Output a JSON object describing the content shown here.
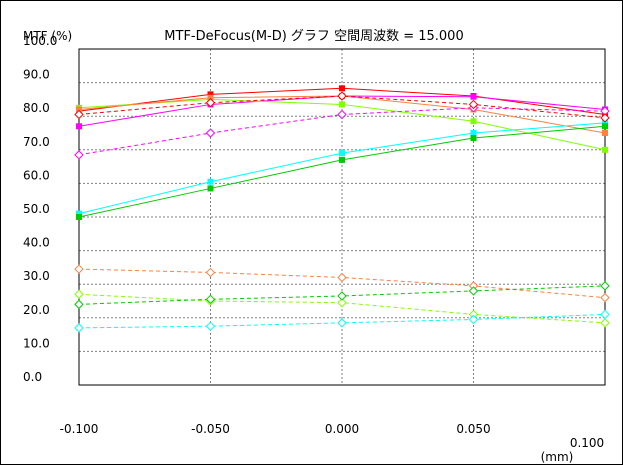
{
  "chart_data": {
    "type": "line",
    "title": "MTF-DeFocus(M-D) グラフ  空間周波数 = 15.000",
    "ylabel": "MTF (%)",
    "xlabel": "(mm)",
    "x": [
      -0.1,
      -0.05,
      0.0,
      0.05,
      0.1
    ],
    "x_tick_labels": [
      "-0.100",
      "-0.050",
      "0.000",
      "0.050",
      "0.100"
    ],
    "y_tick_labels": [
      "0.0",
      "10.0",
      "20.0",
      "30.0",
      "40.0",
      "50.0",
      "60.0",
      "70.0",
      "80.0",
      "90.0",
      "100.0"
    ],
    "xlim": [
      -0.1,
      0.1
    ],
    "ylim": [
      0,
      100
    ],
    "grid": true,
    "series": [
      {
        "color": "#ff0000",
        "dash": false,
        "marker": "square",
        "values": [
          81.5,
          86.5,
          88.3,
          86.0,
          80.5
        ]
      },
      {
        "color": "#ff00ff",
        "dash": false,
        "marker": "square",
        "values": [
          77.0,
          83.5,
          86.0,
          85.8,
          82.0
        ]
      },
      {
        "color": "#80ff00",
        "dash": false,
        "marker": "square",
        "values": [
          82.5,
          85.0,
          83.5,
          78.5,
          70.0
        ]
      },
      {
        "color": "#ff8040",
        "dash": false,
        "marker": "square",
        "values": [
          82.0,
          85.5,
          86.0,
          82.0,
          75.0
        ]
      },
      {
        "color": "#00ffff",
        "dash": false,
        "marker": "square",
        "values": [
          51.0,
          60.5,
          69.0,
          75.0,
          78.0
        ]
      },
      {
        "color": "#00cc00",
        "dash": false,
        "marker": "square",
        "values": [
          50.0,
          58.5,
          67.0,
          73.5,
          77.0
        ]
      },
      {
        "color": "#ff00ff",
        "dash": true,
        "marker": "diamond",
        "values": [
          68.5,
          75.0,
          80.5,
          82.5,
          81.5
        ]
      },
      {
        "color": "#ff0000",
        "dash": true,
        "marker": "diamond",
        "values": [
          80.5,
          84.0,
          86.0,
          83.5,
          79.5
        ]
      },
      {
        "color": "#ff8040",
        "dash": true,
        "marker": "diamond",
        "values": [
          34.5,
          33.5,
          32.0,
          29.5,
          26.0
        ]
      },
      {
        "color": "#80ff00",
        "dash": true,
        "marker": "diamond",
        "values": [
          27.0,
          25.0,
          24.5,
          21.0,
          18.5
        ]
      },
      {
        "color": "#00cc00",
        "dash": true,
        "marker": "diamond",
        "values": [
          24.0,
          25.5,
          26.5,
          28.0,
          29.5
        ]
      },
      {
        "color": "#00ffff",
        "dash": true,
        "marker": "diamond",
        "values": [
          17.0,
          17.5,
          18.5,
          19.5,
          21.0
        ]
      }
    ]
  }
}
